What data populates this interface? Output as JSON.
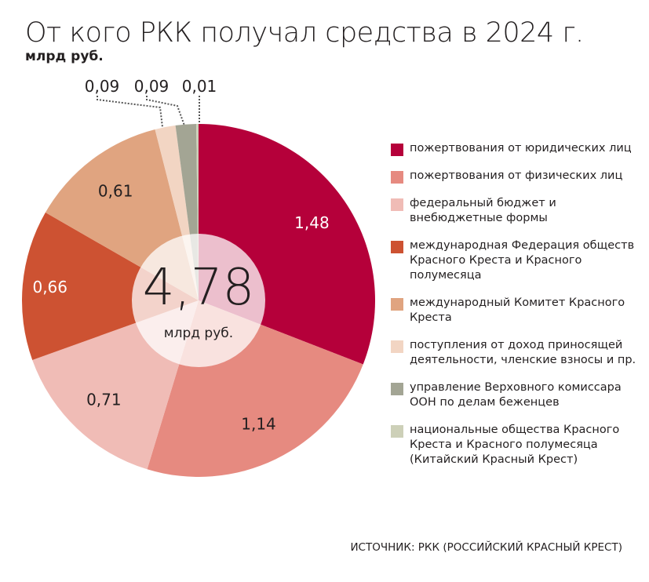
{
  "chart_data": {
    "type": "pie",
    "title": "От кого РКК получал средства в 2024 г.",
    "unit": "млрд руб.",
    "total": "4,78",
    "total_unit": "млрд руб.",
    "slices": [
      {
        "label": "пожертвования от юридических лиц",
        "value": 1.48,
        "text": "1,48",
        "color": "#b5003a"
      },
      {
        "label": "пожертвования от физических лиц",
        "value": 1.14,
        "text": "1,14",
        "color": "#e68a80"
      },
      {
        "label": "федеральный бюджет и внебюджетные формы",
        "value": 0.71,
        "text": "0,71",
        "color": "#f0bcb6"
      },
      {
        "label": "международная Федерация обществ Красного Креста и Красного полумесяца",
        "value": 0.66,
        "text": "0,66",
        "color": "#cd5232"
      },
      {
        "label": "международный Комитет Красного Креста",
        "value": 0.61,
        "text": "0,61",
        "color": "#e0a480"
      },
      {
        "label": "поступления от доход приносящей деятельности, членские взносы и пр.",
        "value": 0.09,
        "text": "0,09",
        "color": "#f2d5c3"
      },
      {
        "label": "управление Верховного комиссара ООН по делам беженцев",
        "value": 0.09,
        "text": "0,09",
        "color": "#a3a594"
      },
      {
        "label": "национальные общества Красного Креста и Красного полумесяца (Китайский Красный Крест)",
        "value": 0.01,
        "text": "0,01",
        "color": "#cdd0b8"
      }
    ],
    "legend": "right"
  },
  "source": "ИСТОЧНИК: РКК (РОССИЙСКИЙ КРАСНЫЙ КРЕСТ)"
}
